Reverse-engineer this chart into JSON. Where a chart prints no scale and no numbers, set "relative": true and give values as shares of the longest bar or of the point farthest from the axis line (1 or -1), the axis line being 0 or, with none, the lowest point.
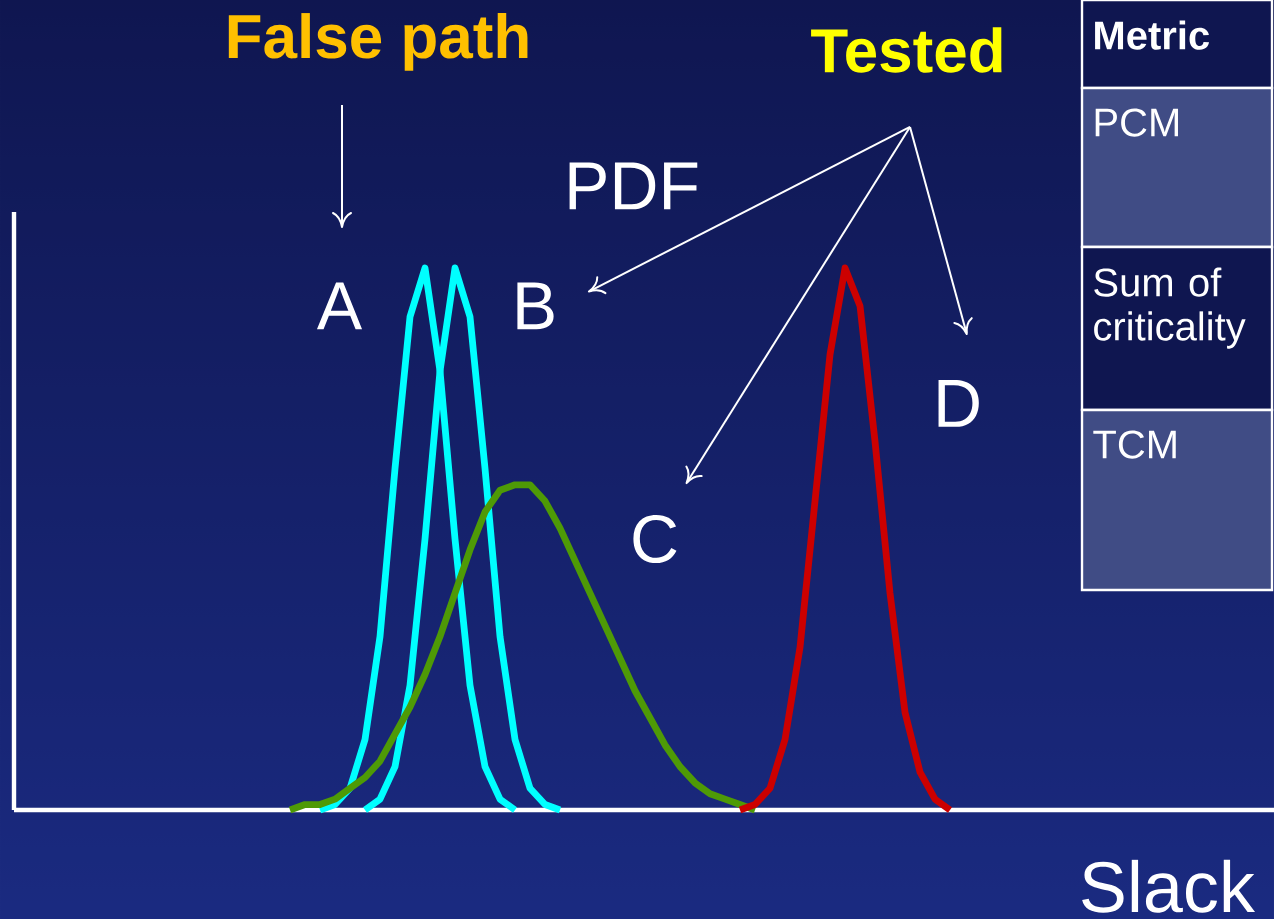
{
  "chart_data": {
    "type": "line",
    "relative": true,
    "xlabel": "Slack",
    "categories": [
      null,
      null,
      null,
      null,
      null,
      null,
      null,
      null,
      null,
      null,
      null,
      null,
      null,
      null,
      null,
      null,
      null,
      null,
      null,
      null,
      null,
      null,
      null,
      null,
      null,
      null,
      null,
      null,
      null,
      null,
      null,
      null,
      null,
      null,
      null,
      null,
      null,
      null,
      null,
      null,
      null,
      null,
      null,
      null,
      null,
      null,
      null,
      null,
      null,
      null,
      null,
      null,
      null,
      null,
      null,
      null,
      null,
      null,
      null,
      null,
      null,
      null,
      null,
      null,
      null,
      null,
      null
    ],
    "series": [
      {
        "name": "A",
        "color": "#00ffff",
        "values": [
          null,
          null,
          null,
          null,
          null,
          null,
          null,
          null,
          null,
          null,
          null,
          null,
          null,
          null,
          null,
          null,
          null,
          null,
          null,
          null,
          0,
          0.01,
          0.04,
          0.13,
          0.32,
          0.63,
          0.91,
          1,
          0.81,
          0.5,
          0.23,
          0.08,
          0.02,
          0,
          null,
          null,
          null,
          null,
          null,
          null,
          null,
          null,
          null,
          null,
          null,
          null,
          null,
          null,
          null,
          null,
          null,
          null,
          null,
          null,
          null,
          null,
          null,
          null,
          null,
          null,
          null,
          null,
          null,
          null,
          null,
          null,
          null
        ]
      },
      {
        "name": "B",
        "color": "#00ffff",
        "values": [
          null,
          null,
          null,
          null,
          null,
          null,
          null,
          null,
          null,
          null,
          null,
          null,
          null,
          null,
          null,
          null,
          null,
          null,
          null,
          null,
          null,
          null,
          null,
          0,
          0.02,
          0.08,
          0.23,
          0.5,
          0.81,
          1,
          0.91,
          0.63,
          0.32,
          0.13,
          0.04,
          0.01,
          0,
          null,
          null,
          null,
          null,
          null,
          null,
          null,
          null,
          null,
          null,
          null,
          null,
          null,
          null,
          null,
          null,
          null,
          null,
          null,
          null,
          null,
          null,
          null,
          null,
          null,
          null,
          null,
          null,
          null,
          null
        ]
      },
      {
        "name": "C",
        "color": "#4e9a06",
        "values": [
          null,
          null,
          null,
          null,
          null,
          null,
          null,
          null,
          null,
          null,
          null,
          null,
          null,
          null,
          null,
          null,
          null,
          null,
          0,
          0.01,
          0.01,
          0.02,
          0.04,
          0.06,
          0.09,
          0.14,
          0.19,
          0.25,
          0.32,
          0.4,
          0.48,
          0.55,
          0.59,
          0.6,
          0.6,
          0.57,
          0.52,
          0.46,
          0.4,
          0.34,
          0.28,
          0.22,
          0.17,
          0.12,
          0.08,
          0.05,
          0.03,
          0.02,
          0.01,
          0,
          null,
          null,
          null,
          null,
          null,
          null,
          null,
          null,
          null,
          null,
          null,
          null,
          null,
          null,
          null,
          null,
          null
        ]
      },
      {
        "name": "D",
        "color": "#cc0000",
        "values": [
          null,
          null,
          null,
          null,
          null,
          null,
          null,
          null,
          null,
          null,
          null,
          null,
          null,
          null,
          null,
          null,
          null,
          null,
          null,
          null,
          null,
          null,
          null,
          null,
          null,
          null,
          null,
          null,
          null,
          null,
          null,
          null,
          null,
          null,
          null,
          null,
          null,
          null,
          null,
          null,
          null,
          null,
          null,
          null,
          null,
          null,
          null,
          null,
          0,
          0.01,
          0.04,
          0.13,
          0.3,
          0.57,
          0.84,
          1,
          0.93,
          0.68,
          0.4,
          0.18,
          0.07,
          0.02,
          0,
          null,
          null,
          null,
          null
        ]
      }
    ],
    "annotations": [
      "False path",
      "Tested",
      "PDF",
      "Metric",
      "PCM",
      "Sum of criticality",
      "TCM"
    ]
  }
}
